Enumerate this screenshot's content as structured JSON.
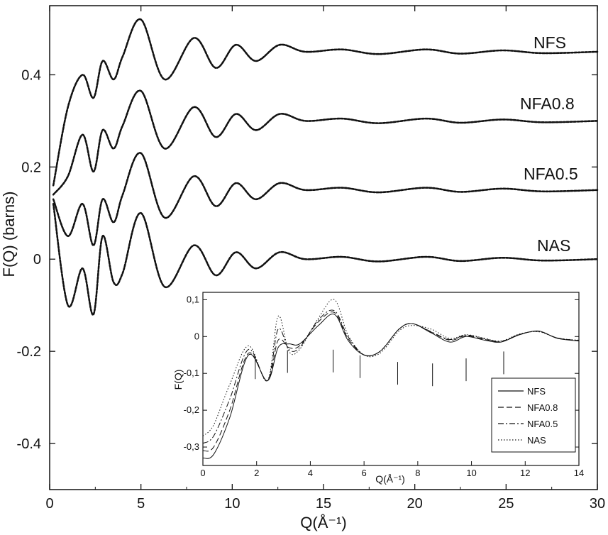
{
  "chart_data": [
    {
      "type": "line",
      "xlabel": "Q(Å⁻¹)",
      "ylabel": "F(Q) (barns)",
      "xlim": [
        0,
        30
      ],
      "ylim": [
        -0.5,
        0.55
      ],
      "xticks": [
        "0",
        "5",
        "10",
        "15",
        "20",
        "25",
        "30"
      ],
      "yticks": [
        "-0.4",
        "-0.2",
        "0",
        "0.2",
        "0.4"
      ],
      "series_labels": [
        "NFS",
        "NFA0.8",
        "NFA0.5",
        "NAS"
      ],
      "series_offsets": [
        0.45,
        0.3,
        0.15,
        0.0
      ],
      "peaks_x": [
        1.8,
        2.9,
        3.9,
        5.0,
        6.3,
        7.9,
        10.2,
        12.6,
        16.0,
        20.6,
        24.8
      ],
      "series": [
        {
          "name": "NFS",
          "offset": 0.45,
          "start_y": -0.29,
          "x": [
            0.2,
            1.0,
            1.8,
            2.4,
            2.9,
            3.5,
            4.0,
            5.0,
            6.3,
            7.9,
            9.1,
            10.2,
            11.3,
            12.6,
            14.0,
            16.0,
            18.0,
            20.6,
            22.5,
            24.8,
            27.0,
            30.0
          ],
          "y": [
            -0.29,
            -0.12,
            -0.05,
            -0.1,
            -0.02,
            -0.06,
            -0.01,
            0.07,
            -0.06,
            0.03,
            -0.035,
            0.015,
            -0.02,
            0.015,
            0.0,
            0.005,
            -0.005,
            0.005,
            -0.004,
            0.003,
            -0.003,
            0.0
          ]
        },
        {
          "name": "NFA0.8",
          "offset": 0.3,
          "start_y": -0.16,
          "x": [
            0.2,
            1.0,
            1.8,
            2.4,
            2.9,
            3.5,
            4.0,
            5.0,
            6.3,
            7.9,
            9.1,
            10.2,
            11.3,
            12.6,
            14.0,
            16.0,
            18.0,
            20.6,
            22.5,
            24.8,
            27.0,
            30.0
          ],
          "y": [
            -0.16,
            -0.12,
            -0.03,
            -0.11,
            -0.02,
            -0.06,
            -0.01,
            0.065,
            -0.06,
            0.03,
            -0.035,
            0.015,
            -0.02,
            0.015,
            0.0,
            0.005,
            -0.005,
            0.005,
            -0.004,
            0.003,
            -0.003,
            0.0
          ]
        },
        {
          "name": "NFA0.5",
          "offset": 0.15,
          "start_y": -0.02,
          "x": [
            0.2,
            1.0,
            1.8,
            2.4,
            2.9,
            3.5,
            4.0,
            5.0,
            6.3,
            7.9,
            9.1,
            10.2,
            11.3,
            12.6,
            14.0,
            16.0,
            18.0,
            20.6,
            22.5,
            24.8,
            27.0,
            30.0
          ],
          "y": [
            -0.02,
            -0.1,
            -0.03,
            -0.12,
            -0.02,
            -0.07,
            -0.01,
            0.08,
            -0.06,
            0.03,
            -0.035,
            0.015,
            -0.02,
            0.015,
            0.0,
            0.005,
            -0.005,
            0.005,
            -0.004,
            0.003,
            -0.003,
            0.0
          ]
        },
        {
          "name": "NAS",
          "offset": 0.0,
          "start_y": 0.12,
          "x": [
            0.2,
            1.0,
            1.8,
            2.4,
            2.9,
            3.5,
            4.0,
            5.0,
            6.3,
            7.9,
            9.1,
            10.2,
            11.3,
            12.6,
            14.0,
            16.0,
            18.0,
            20.6,
            22.5,
            24.8,
            27.0,
            30.0
          ],
          "y": [
            0.12,
            -0.1,
            -0.02,
            -0.12,
            0.05,
            -0.05,
            -0.03,
            0.1,
            -0.06,
            0.03,
            -0.035,
            0.015,
            -0.02,
            0.015,
            0.0,
            0.005,
            -0.005,
            0.005,
            -0.004,
            0.003,
            -0.003,
            0.0
          ]
        }
      ]
    },
    {
      "type": "line",
      "xlabel": "Q(Å⁻¹)",
      "ylabel": "F(Q)",
      "xlim": [
        0,
        14
      ],
      "ylim": [
        -0.35,
        0.12
      ],
      "xticks": [
        "0",
        "2",
        "4",
        "6",
        "8",
        "10",
        "12",
        "14"
      ],
      "yticks": [
        "0,1",
        "0",
        "-0,1",
        "-0,2",
        "-0,3"
      ],
      "vertical_markers_x": [
        1.95,
        3.15,
        4.85,
        5.85,
        7.25,
        8.55,
        9.8,
        11.2
      ],
      "legend": {
        "position": "bottom-right",
        "entries": [
          "NFS",
          "NFA0.8",
          "NFA0.5",
          "NAS"
        ],
        "styles": [
          "solid",
          "dashed",
          "dash-dot",
          "dotted"
        ]
      },
      "series": [
        {
          "name": "NFS",
          "x": [
            0.0,
            0.4,
            1.0,
            1.7,
            2.4,
            2.8,
            3.2,
            3.6,
            4.3,
            4.9,
            5.4,
            6.0,
            6.6,
            7.3,
            7.8,
            8.5,
            9.2,
            9.8,
            10.5,
            11.1,
            11.8,
            12.5,
            13.2,
            14.0
          ],
          "y": [
            -0.33,
            -0.32,
            -0.22,
            -0.05,
            -0.12,
            -0.03,
            -0.02,
            -0.02,
            0.03,
            0.06,
            -0.01,
            -0.05,
            -0.04,
            0.02,
            0.035,
            0.01,
            -0.015,
            0.0,
            -0.01,
            -0.015,
            0.005,
            0.015,
            -0.005,
            -0.012
          ]
        },
        {
          "name": "NFA0.8",
          "x": [
            0.0,
            0.4,
            1.0,
            1.7,
            2.4,
            2.8,
            3.2,
            3.6,
            4.3,
            4.9,
            5.4,
            6.0,
            6.6,
            7.3,
            7.8,
            8.5,
            9.2,
            9.8,
            10.5,
            11.1,
            11.8,
            12.5,
            13.2,
            14.0
          ],
          "y": [
            -0.31,
            -0.3,
            -0.2,
            -0.045,
            -0.12,
            -0.01,
            -0.03,
            -0.025,
            0.04,
            0.065,
            -0.005,
            -0.05,
            -0.04,
            0.02,
            0.035,
            0.012,
            -0.01,
            0.002,
            -0.008,
            -0.014,
            0.006,
            0.014,
            -0.004,
            -0.011
          ]
        },
        {
          "name": "NFA0.5",
          "x": [
            0.0,
            0.4,
            1.0,
            1.7,
            2.4,
            2.8,
            3.2,
            3.6,
            4.3,
            4.9,
            5.4,
            6.0,
            6.6,
            7.3,
            7.8,
            8.5,
            9.2,
            9.8,
            10.5,
            11.1,
            11.8,
            12.5,
            13.2,
            14.0
          ],
          "y": [
            -0.29,
            -0.27,
            -0.17,
            -0.035,
            -0.12,
            0.02,
            -0.035,
            -0.03,
            0.045,
            0.07,
            0.0,
            -0.05,
            -0.04,
            0.02,
            0.035,
            0.013,
            -0.008,
            0.004,
            -0.006,
            -0.013,
            0.006,
            0.014,
            -0.004,
            -0.011
          ]
        },
        {
          "name": "NAS",
          "x": [
            0.0,
            0.4,
            1.0,
            1.7,
            2.4,
            2.8,
            3.2,
            3.6,
            4.3,
            4.9,
            5.4,
            6.0,
            6.6,
            7.3,
            7.8,
            8.5,
            9.2,
            9.8,
            10.5,
            11.1,
            11.8,
            12.5,
            13.2,
            14.0
          ],
          "y": [
            -0.27,
            -0.24,
            -0.13,
            -0.025,
            -0.12,
            0.055,
            -0.04,
            -0.035,
            0.05,
            0.1,
            0.005,
            -0.05,
            -0.045,
            0.015,
            0.03,
            0.02,
            -0.005,
            0.005,
            -0.005,
            -0.012,
            0.007,
            0.013,
            -0.004,
            -0.01
          ]
        }
      ]
    }
  ]
}
